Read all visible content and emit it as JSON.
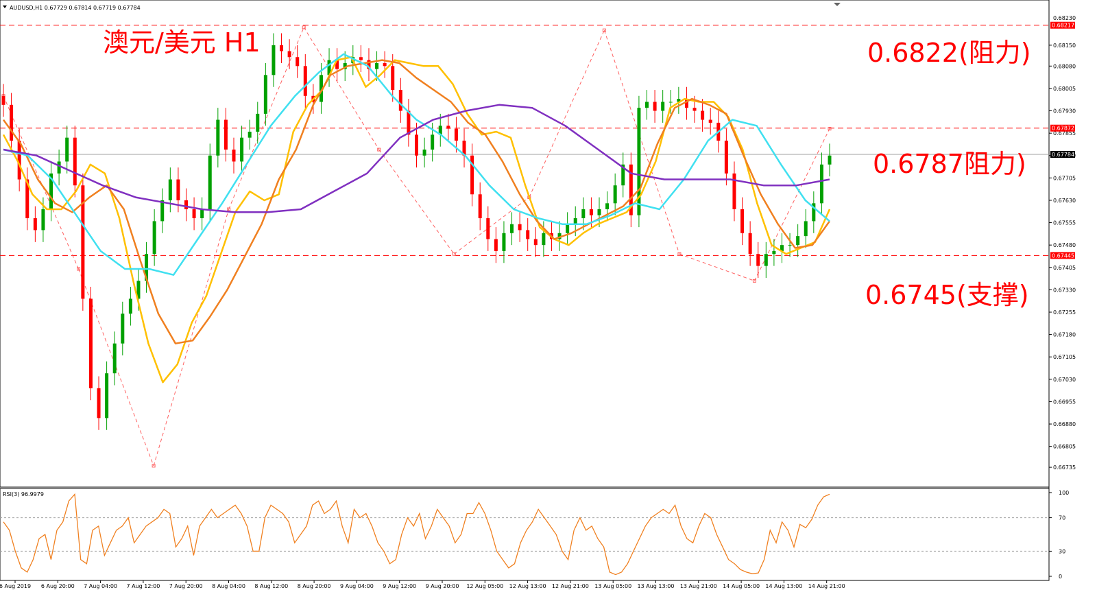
{
  "window": {
    "symbol_info": "AUDUSD,H1  0.67729 0.67814 0.67719 0.67784",
    "rsi_info": "RSI(3) 96.9979"
  },
  "annotations": {
    "title": "澳元/美元 H1",
    "resistance_high": "0.6822(阻力)",
    "resistance_mid": "0.6787阻力)",
    "support": "0.6745(支撑)"
  },
  "chart_data": {
    "type": "candlestick",
    "instrument": "AUDUSD",
    "timeframe": "H1",
    "colors": {
      "up": "#00a000",
      "down": "#ff0000",
      "background": "#ffffff",
      "level": "#ff0000"
    },
    "price_axis": {
      "range": [
        0.6668,
        0.6829
      ],
      "ticks": [
        "0.68150",
        "0.68080",
        "0.68005",
        "0.67930",
        "0.67855",
        "0.67780",
        "0.67705",
        "0.67630",
        "0.67555",
        "0.67480",
        "0.67405",
        "0.67330",
        "0.67255",
        "0.67180",
        "0.67105",
        "0.67030",
        "0.66955",
        "0.66880",
        "0.66805",
        "0.66735"
      ]
    },
    "price_labels": {
      "top": "0.68217",
      "resistance": "0.67872",
      "current": "0.67784",
      "support": "0.67445",
      "top_cut": "0.68230"
    },
    "levels": [
      {
        "value": 0.68217,
        "style": "dashed"
      },
      {
        "value": 0.67872,
        "style": "dashed"
      },
      {
        "value": 0.67445,
        "style": "dashed"
      },
      {
        "value": 0.67784,
        "style": "solid-gray"
      }
    ],
    "time_axis": [
      "6 Aug 2019",
      "6 Aug 20:00",
      "7 Aug 04:00",
      "7 Aug 12:00",
      "7 Aug 20:00",
      "8 Aug 04:00",
      "8 Aug 12:00",
      "8 Aug 20:00",
      "9 Aug 04:00",
      "9 Aug 12:00",
      "9 Aug 20:00",
      "12 Aug 05:00",
      "12 Aug 13:00",
      "12 Aug 21:00",
      "13 Aug 05:00",
      "13 Aug 13:00",
      "13 Aug 21:00",
      "14 Aug 05:00",
      "14 Aug 13:00",
      "14 Aug 21:00"
    ],
    "close_path": [
      0.6795,
      0.6783,
      0.677,
      0.6757,
      0.6753,
      0.676,
      0.6772,
      0.6776,
      0.6784,
      0.6768,
      0.673,
      0.67,
      0.669,
      0.6705,
      0.6715,
      0.6725,
      0.673,
      0.6736,
      0.6745,
      0.6756,
      0.6763,
      0.677,
      0.6763,
      0.676,
      0.6757,
      0.676,
      0.6778,
      0.679,
      0.678,
      0.6776,
      0.6784,
      0.6786,
      0.6792,
      0.6805,
      0.6815,
      0.6813,
      0.6811,
      0.6808,
      0.6798,
      0.6796,
      0.6805,
      0.681,
      0.6807,
      0.6809,
      0.6811,
      0.681,
      0.6807,
      0.6809,
      0.6808,
      0.68,
      0.6793,
      0.6785,
      0.6778,
      0.678,
      0.6785,
      0.6788,
      0.6787,
      0.6783,
      0.6778,
      0.6765,
      0.6757,
      0.675,
      0.6746,
      0.6752,
      0.6755,
      0.6753,
      0.675,
      0.6748,
      0.6752,
      0.675,
      0.6752,
      0.6755,
      0.6757,
      0.676,
      0.6758,
      0.676,
      0.6762,
      0.6768,
      0.6775,
      0.6758,
      0.6794,
      0.6796,
      0.6793,
      0.6796,
      0.6796,
      0.6797,
      0.6794,
      0.6793,
      0.679,
      0.6789,
      0.6783,
      0.6772,
      0.676,
      0.6752,
      0.6745,
      0.6741,
      0.6745,
      0.6746,
      0.6748,
      0.6748,
      0.6751,
      0.6756,
      0.6762,
      0.6775,
      0.6778
    ],
    "sma_lines": [
      {
        "color": "#ffc000",
        "values": [
          0.6785,
          0.6776,
          0.6765,
          0.676,
          0.676,
          0.6766,
          0.6775,
          0.6772,
          0.6757,
          0.6735,
          0.6715,
          0.6702,
          0.6708,
          0.6722,
          0.6731,
          0.6745,
          0.6759,
          0.6766,
          0.6763,
          0.6765,
          0.6786,
          0.6795,
          0.68,
          0.681,
          0.6811,
          0.6801,
          0.6805,
          0.681,
          0.6809,
          0.6808,
          0.6808,
          0.6802,
          0.6792,
          0.6785,
          0.6786,
          0.6784,
          0.6768,
          0.6754,
          0.675,
          0.6748,
          0.6752,
          0.6755,
          0.6757,
          0.6759,
          0.6765,
          0.6776,
          0.6794,
          0.6797,
          0.6796,
          0.6796,
          0.6791,
          0.678,
          0.6762,
          0.6748,
          0.6745,
          0.6747,
          0.6749,
          0.676
        ]
      },
      {
        "color": "#f08020",
        "values": [
          0.679,
          0.6782,
          0.677,
          0.6762,
          0.6759,
          0.6764,
          0.6768,
          0.676,
          0.6742,
          0.6725,
          0.6715,
          0.6716,
          0.6724,
          0.6733,
          0.6744,
          0.6755,
          0.677,
          0.678,
          0.6795,
          0.6805,
          0.6808,
          0.6809,
          0.681,
          0.6809,
          0.6804,
          0.68,
          0.6796,
          0.6789,
          0.6785,
          0.6776,
          0.6765,
          0.6756,
          0.675,
          0.6752,
          0.6755,
          0.6758,
          0.6761,
          0.6767,
          0.6782,
          0.6794,
          0.6797,
          0.6795,
          0.6792,
          0.6778,
          0.6765,
          0.6755,
          0.6747,
          0.6748,
          0.6756
        ]
      },
      {
        "color": "#40e0f0",
        "values": [
          0.678,
          0.6778,
          0.677,
          0.6758,
          0.6746,
          0.674,
          0.674,
          0.6738,
          0.675,
          0.6762,
          0.6775,
          0.6788,
          0.6798,
          0.6806,
          0.6812,
          0.6808,
          0.6798,
          0.679,
          0.6785,
          0.6778,
          0.6768,
          0.676,
          0.6757,
          0.6755,
          0.6755,
          0.6758,
          0.6762,
          0.676,
          0.677,
          0.6783,
          0.679,
          0.6788,
          0.6775,
          0.6763,
          0.6756
        ]
      },
      {
        "color": "#8030c0",
        "values": [
          0.678,
          0.6778,
          0.6773,
          0.6768,
          0.6764,
          0.6762,
          0.676,
          0.6759,
          0.6759,
          0.676,
          0.6766,
          0.6772,
          0.6784,
          0.679,
          0.6793,
          0.6795,
          0.6794,
          0.6788,
          0.678,
          0.6772,
          0.677,
          0.677,
          0.677,
          0.6768,
          0.6768,
          0.677
        ]
      }
    ],
    "zigzag": [
      0.6798,
      0.674,
      0.6674,
      0.676,
      0.6821,
      0.678,
      0.6745,
      0.6764,
      0.682,
      0.6745,
      0.6736,
      0.6787
    ],
    "rsi": {
      "levels": [
        70,
        30
      ],
      "ticks": [
        "100",
        "70",
        "30",
        "0"
      ],
      "range": [
        0,
        100
      ],
      "values": [
        65,
        55,
        30,
        10,
        5,
        20,
        45,
        50,
        20,
        55,
        65,
        90,
        98,
        20,
        15,
        55,
        60,
        25,
        40,
        55,
        60,
        70,
        40,
        50,
        60,
        65,
        70,
        80,
        75,
        35,
        45,
        60,
        25,
        60,
        70,
        80,
        70,
        75,
        80,
        85,
        75,
        60,
        30,
        30,
        70,
        85,
        80,
        75,
        65,
        40,
        50,
        60,
        85,
        90,
        75,
        80,
        90,
        60,
        40,
        80,
        70,
        75,
        60,
        40,
        30,
        15,
        20,
        50,
        70,
        60,
        75,
        45,
        60,
        80,
        70,
        60,
        40,
        50,
        75,
        75,
        88,
        75,
        55,
        30,
        20,
        10,
        15,
        40,
        55,
        65,
        80,
        70,
        60,
        50,
        30,
        20,
        55,
        70,
        55,
        60,
        45,
        35,
        5,
        2,
        5,
        15,
        30,
        45,
        60,
        70,
        75,
        80,
        75,
        85,
        60,
        45,
        40,
        60,
        75,
        70,
        50,
        35,
        20,
        15,
        8,
        5,
        3,
        4,
        20,
        55,
        40,
        65,
        55,
        35,
        62,
        58,
        68,
        85,
        95,
        98
      ]
    }
  }
}
